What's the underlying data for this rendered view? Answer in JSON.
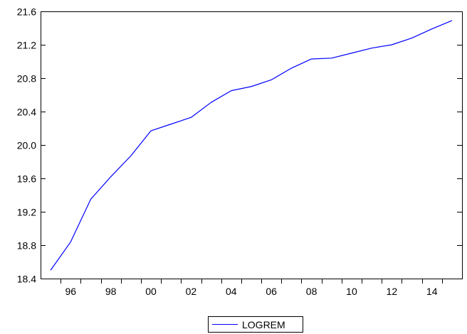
{
  "chart_data": {
    "type": "line",
    "title": "",
    "xlabel": "",
    "ylabel": "",
    "x": [
      1995,
      1996,
      1997,
      1998,
      1999,
      2000,
      2001,
      2002,
      2003,
      2004,
      2005,
      2006,
      2007,
      2008,
      2009,
      2010,
      2011,
      2012,
      2013,
      2014,
      2015
    ],
    "x_ticks": [
      {
        "value": 1996,
        "label": "96"
      },
      {
        "value": 1998,
        "label": "98"
      },
      {
        "value": 2000,
        "label": "00"
      },
      {
        "value": 2002,
        "label": "02"
      },
      {
        "value": 2004,
        "label": "04"
      },
      {
        "value": 2006,
        "label": "06"
      },
      {
        "value": 2008,
        "label": "08"
      },
      {
        "value": 2010,
        "label": "10"
      },
      {
        "value": 2012,
        "label": "12"
      },
      {
        "value": 2014,
        "label": "14"
      }
    ],
    "xlim": [
      1994.5,
      2015.5
    ],
    "ylim": [
      18.4,
      21.6
    ],
    "y_ticks": [
      {
        "value": 18.4,
        "label": "18.4"
      },
      {
        "value": 18.8,
        "label": "18.8"
      },
      {
        "value": 19.2,
        "label": "19.2"
      },
      {
        "value": 19.6,
        "label": "19.6"
      },
      {
        "value": 20.0,
        "label": "20.0"
      },
      {
        "value": 20.4,
        "label": "20.4"
      },
      {
        "value": 20.8,
        "label": "20.8"
      },
      {
        "value": 21.2,
        "label": "21.2"
      },
      {
        "value": 21.6,
        "label": "21.6"
      }
    ],
    "grid": false,
    "legend_position": "bottom-center",
    "series": [
      {
        "name": "LOGREM",
        "color": "#0000ff",
        "values": [
          18.5,
          18.84,
          19.35,
          19.62,
          19.87,
          20.17,
          20.25,
          20.33,
          20.51,
          20.65,
          20.7,
          20.78,
          20.92,
          21.03,
          21.04,
          21.1,
          21.16,
          21.2,
          21.28,
          21.39,
          21.49
        ]
      }
    ]
  }
}
